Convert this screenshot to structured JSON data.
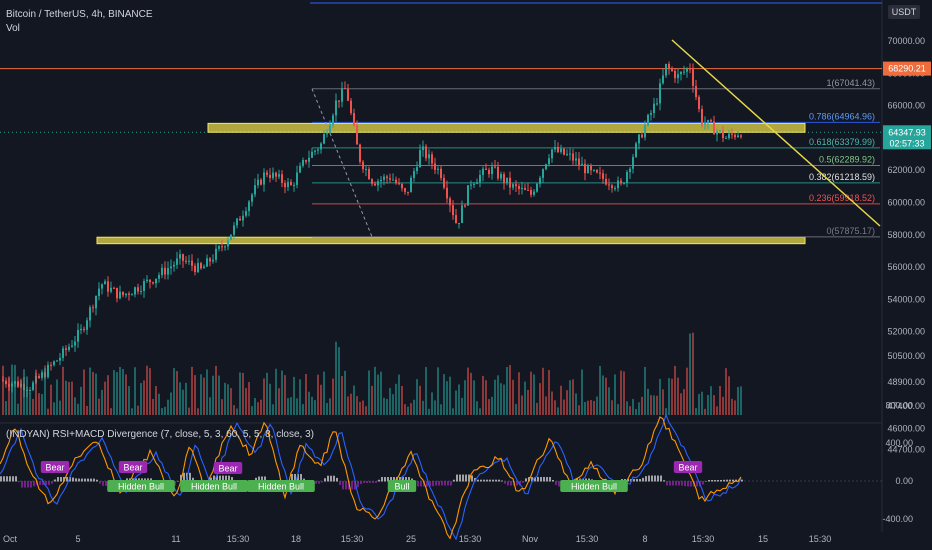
{
  "header": {
    "symbol": "Bitcoin / TetherUS, 4h, BINANCE",
    "volume_label": "Vol",
    "currency_badge": "USDT"
  },
  "colors": {
    "background": "#131722",
    "up": "#26a69a",
    "down": "#ef5350",
    "zone": "#e6d84a",
    "trendline": "#e6d84a",
    "resistance": "#ef6c3c",
    "price_badge": "#26a69a",
    "resistance_badge": "#ef6c3c",
    "rsi": "#ff9800",
    "macd": "#2962ff",
    "bear_label": "#9c27b0",
    "bull_label": "#4caf50"
  },
  "price_badge": {
    "value": "64347.93",
    "countdown": "02:57:33"
  },
  "resistance_badge": {
    "value": "68290.21"
  },
  "indicator": {
    "title": "(INDYAN) RSI+MACD Divergence (7, close, 5, 3, 60, 5, 5, 8, close, 3)",
    "bear_label": "Bear",
    "hidden_bull_label": "Hidden Bull",
    "bull_label": "Bull"
  },
  "chart_data": {
    "type": "candlestick",
    "title": "Bitcoin / TetherUS, 4h, BINANCE",
    "y_ticks": [
      70000,
      68000,
      66000,
      64000,
      62000,
      60000,
      58000,
      56000,
      54000,
      52000,
      50500,
      48900,
      47400,
      46000,
      44700
    ],
    "y_tick_labels": [
      "70000.00",
      "68000.00",
      "66000.00",
      "64000.00",
      "62000.00",
      "60000.00",
      "58000.00",
      "56000.00",
      "54000.00",
      "52000.00",
      "50500.00",
      "48900.00",
      "47400.00",
      "46000.00",
      "44700.00"
    ],
    "x_tick_labels": [
      "Oct",
      "5",
      "11",
      "15:30",
      "18",
      "15:30",
      "25",
      "15:30",
      "Nov",
      "15:30",
      "8",
      "15:30",
      "15",
      "15:30"
    ],
    "ylim": [
      44000,
      71400
    ],
    "fibonacci": [
      {
        "level": "1",
        "value": "67041.43",
        "price": 67041.43
      },
      {
        "level": "0.786",
        "value": "64964.96",
        "price": 64964.96
      },
      {
        "level": "0.618",
        "value": "63379.99",
        "price": 63379.99
      },
      {
        "level": "0.5",
        "value": "62289.92",
        "price": 62289.92
      },
      {
        "level": "0.382",
        "value": "61218.59",
        "price": 61218.59
      },
      {
        "level": "0.236",
        "value": "59918.52",
        "price": 59918.52
      },
      {
        "level": "0",
        "value": "57875.17",
        "price": 57875.17
      }
    ],
    "zones": [
      {
        "name": "resistance-zone",
        "low": 64350,
        "high": 64900
      },
      {
        "name": "support-zone",
        "low": 57450,
        "high": 57850
      }
    ],
    "resistance_line": 68290.21,
    "current_price": 64347.93,
    "indicator_ticks": [
      800,
      400,
      0,
      -400
    ],
    "indicator_tick_labels": [
      "800.00",
      "400.00",
      "0.00",
      "-400.00"
    ]
  }
}
